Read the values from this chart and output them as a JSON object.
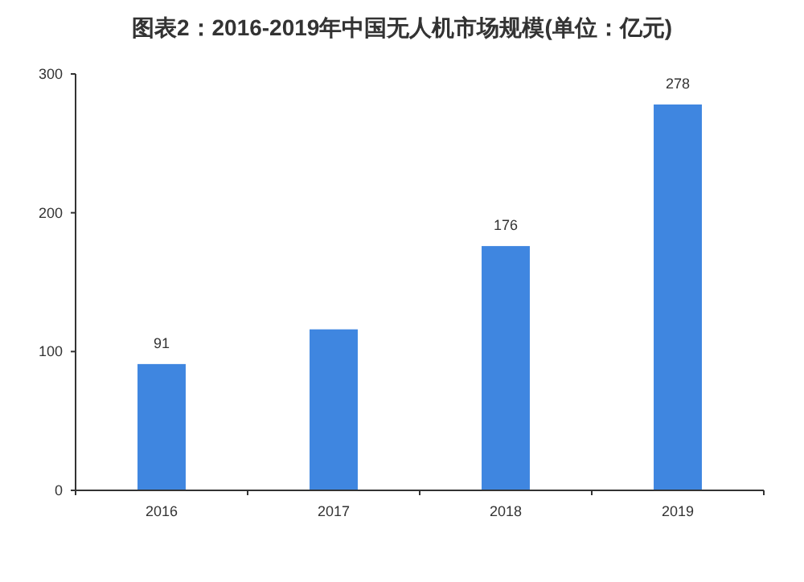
{
  "chart_data": {
    "type": "bar",
    "title": "图表2：2016-2019年中国无人机市场规模(单位：亿元)",
    "categories": [
      "2016",
      "2017",
      "2018",
      "2019"
    ],
    "values": [
      91,
      116,
      176,
      278
    ],
    "value_labels": [
      "91",
      null,
      "176",
      "278"
    ],
    "color": "#3f86e0",
    "ylim": [
      0,
      300
    ],
    "yticks": [
      0,
      100,
      200,
      300
    ],
    "grid": false
  }
}
